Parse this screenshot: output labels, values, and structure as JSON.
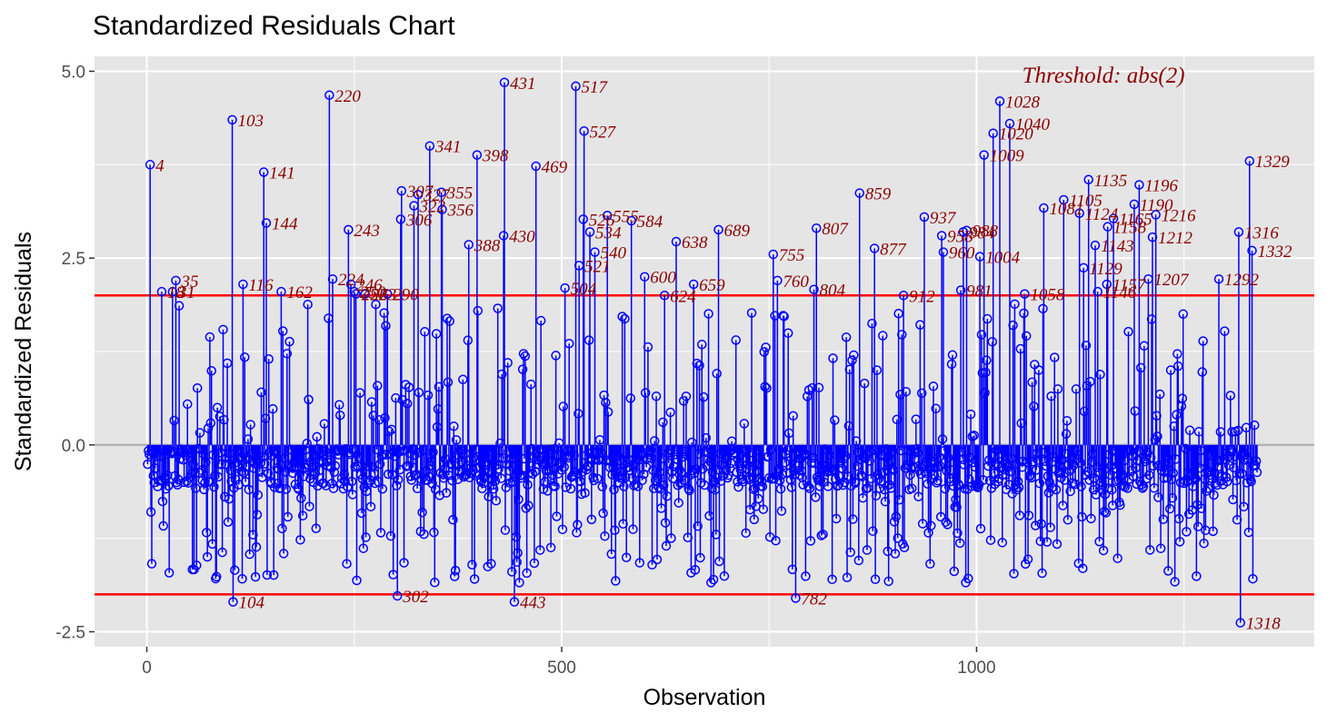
{
  "chart_data": {
    "type": "scatter",
    "title": "Standardized Residuals Chart",
    "xlabel": "Observation",
    "ylabel": "Standardized Residuals",
    "xlim": [
      -63,
      1407
    ],
    "ylim": [
      -2.7,
      5.2
    ],
    "xticks": [
      0,
      500,
      1000
    ],
    "xtick_labels": [
      "0",
      "500",
      "1000"
    ],
    "yticks": [
      -2.5,
      0,
      2.5,
      5
    ],
    "ytick_labels": [
      "-2.5",
      "0.0",
      "2.5",
      "5.0"
    ],
    "grid": true,
    "thresholds": [
      2,
      -2
    ],
    "threshold_annotation": "Threshold: abs(2)",
    "colors": {
      "panel": "#e5e5e5",
      "grid": "#ffffff",
      "points": "#0000ff",
      "threshold": "#ff0000",
      "zero_line": "#b3b3b3",
      "labels": "#8b0000"
    },
    "random_seed": 20240517,
    "n_observations": 1338,
    "outliers": [
      {
        "x": 4,
        "y": 3.75,
        "label": "4"
      },
      {
        "x": 18,
        "y": 2.05,
        "label": "18"
      },
      {
        "x": 31,
        "y": 2.05,
        "label": "31"
      },
      {
        "x": 35,
        "y": 2.2,
        "label": "35"
      },
      {
        "x": 103,
        "y": 4.35,
        "label": "103"
      },
      {
        "x": 104,
        "y": -2.1,
        "label": "104"
      },
      {
        "x": 116,
        "y": 2.15,
        "label": "116"
      },
      {
        "x": 141,
        "y": 3.65,
        "label": "141"
      },
      {
        "x": 144,
        "y": 2.97,
        "label": "144"
      },
      {
        "x": 162,
        "y": 2.05,
        "label": "162"
      },
      {
        "x": 220,
        "y": 4.68,
        "label": "220"
      },
      {
        "x": 224,
        "y": 2.22,
        "label": "224"
      },
      {
        "x": 243,
        "y": 2.88,
        "label": "243"
      },
      {
        "x": 246,
        "y": 2.15,
        "label": "246"
      },
      {
        "x": 250,
        "y": 2.05,
        "label": "250"
      },
      {
        "x": 252,
        "y": 2.02,
        "label": "252"
      },
      {
        "x": 263,
        "y": 2.02,
        "label": "263"
      },
      {
        "x": 290,
        "y": 2.02,
        "label": "290"
      },
      {
        "x": 302,
        "y": -2.02,
        "label": "302"
      },
      {
        "x": 306,
        "y": 3.02,
        "label": "306"
      },
      {
        "x": 307,
        "y": 3.4,
        "label": "307"
      },
      {
        "x": 322,
        "y": 3.2,
        "label": "322"
      },
      {
        "x": 327,
        "y": 3.35,
        "label": "327"
      },
      {
        "x": 341,
        "y": 4.0,
        "label": "341"
      },
      {
        "x": 355,
        "y": 3.38,
        "label": "355"
      },
      {
        "x": 356,
        "y": 3.15,
        "label": "356"
      },
      {
        "x": 388,
        "y": 2.68,
        "label": "388"
      },
      {
        "x": 398,
        "y": 3.88,
        "label": "398"
      },
      {
        "x": 430,
        "y": 2.8,
        "label": "430"
      },
      {
        "x": 431,
        "y": 4.85,
        "label": "431"
      },
      {
        "x": 443,
        "y": -2.1,
        "label": "443"
      },
      {
        "x": 469,
        "y": 3.73,
        "label": "469"
      },
      {
        "x": 504,
        "y": 2.1,
        "label": "504"
      },
      {
        "x": 517,
        "y": 4.8,
        "label": "517"
      },
      {
        "x": 521,
        "y": 2.4,
        "label": "521"
      },
      {
        "x": 526,
        "y": 3.02,
        "label": "526"
      },
      {
        "x": 527,
        "y": 4.2,
        "label": "527"
      },
      {
        "x": 534,
        "y": 2.85,
        "label": "534"
      },
      {
        "x": 540,
        "y": 2.58,
        "label": "540"
      },
      {
        "x": 555,
        "y": 3.07,
        "label": "555"
      },
      {
        "x": 584,
        "y": 3.0,
        "label": "584"
      },
      {
        "x": 600,
        "y": 2.25,
        "label": "600"
      },
      {
        "x": 624,
        "y": 2.0,
        "label": "624"
      },
      {
        "x": 638,
        "y": 2.72,
        "label": "638"
      },
      {
        "x": 659,
        "y": 2.15,
        "label": "659"
      },
      {
        "x": 689,
        "y": 2.88,
        "label": "689"
      },
      {
        "x": 755,
        "y": 2.55,
        "label": "755"
      },
      {
        "x": 760,
        "y": 2.2,
        "label": "760"
      },
      {
        "x": 782,
        "y": -2.05,
        "label": "782"
      },
      {
        "x": 804,
        "y": 2.08,
        "label": "804"
      },
      {
        "x": 807,
        "y": 2.9,
        "label": "807"
      },
      {
        "x": 859,
        "y": 3.37,
        "label": "859"
      },
      {
        "x": 877,
        "y": 2.63,
        "label": "877"
      },
      {
        "x": 912,
        "y": 2.0,
        "label": "912"
      },
      {
        "x": 937,
        "y": 3.05,
        "label": "937"
      },
      {
        "x": 958,
        "y": 2.8,
        "label": "958"
      },
      {
        "x": 960,
        "y": 2.58,
        "label": "960"
      },
      {
        "x": 981,
        "y": 2.07,
        "label": "981"
      },
      {
        "x": 984,
        "y": 2.85,
        "label": "984"
      },
      {
        "x": 988,
        "y": 2.87,
        "label": "988"
      },
      {
        "x": 1004,
        "y": 2.52,
        "label": "1004"
      },
      {
        "x": 1009,
        "y": 3.88,
        "label": "1009"
      },
      {
        "x": 1020,
        "y": 4.17,
        "label": "1020"
      },
      {
        "x": 1028,
        "y": 4.6,
        "label": "1028"
      },
      {
        "x": 1040,
        "y": 4.3,
        "label": "1040"
      },
      {
        "x": 1058,
        "y": 2.02,
        "label": "1058"
      },
      {
        "x": 1081,
        "y": 3.17,
        "label": "1081"
      },
      {
        "x": 1105,
        "y": 3.28,
        "label": "1105"
      },
      {
        "x": 1124,
        "y": 3.1,
        "label": "1124"
      },
      {
        "x": 1129,
        "y": 2.37,
        "label": "1129"
      },
      {
        "x": 1135,
        "y": 3.55,
        "label": "1135"
      },
      {
        "x": 1143,
        "y": 2.67,
        "label": "1143"
      },
      {
        "x": 1146,
        "y": 2.05,
        "label": "1146"
      },
      {
        "x": 1157,
        "y": 2.15,
        "label": "1157"
      },
      {
        "x": 1158,
        "y": 2.92,
        "label": "1158"
      },
      {
        "x": 1165,
        "y": 3.03,
        "label": "1165"
      },
      {
        "x": 1190,
        "y": 3.22,
        "label": "1190"
      },
      {
        "x": 1196,
        "y": 3.48,
        "label": "1196"
      },
      {
        "x": 1207,
        "y": 2.22,
        "label": "1207"
      },
      {
        "x": 1212,
        "y": 2.78,
        "label": "1212"
      },
      {
        "x": 1216,
        "y": 3.08,
        "label": "1216"
      },
      {
        "x": 1292,
        "y": 2.22,
        "label": "1292"
      },
      {
        "x": 1316,
        "y": 2.85,
        "label": "1316"
      },
      {
        "x": 1318,
        "y": -2.38,
        "label": "1318"
      },
      {
        "x": 1329,
        "y": 3.8,
        "label": "1329"
      },
      {
        "x": 1332,
        "y": 2.6,
        "label": "1332"
      }
    ]
  }
}
